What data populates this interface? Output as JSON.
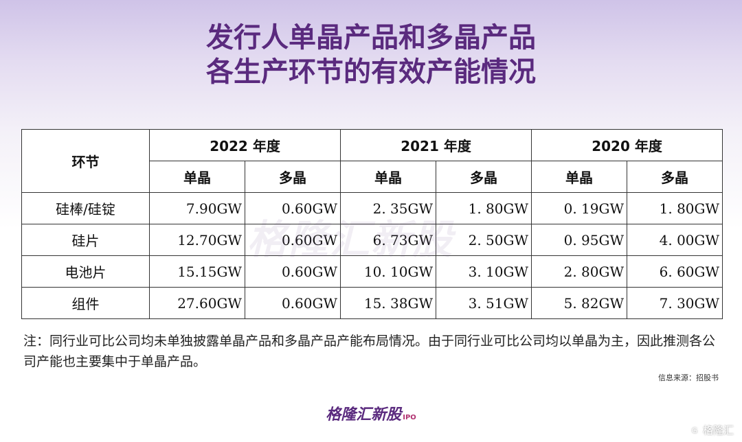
{
  "title": {
    "line1": "发行人单晶产品和多晶产品",
    "line2": "各生产环节的有效产能情况"
  },
  "table": {
    "stage_header": "环节",
    "years": [
      "2022 年度",
      "2021 年度",
      "2020 年度"
    ],
    "sub_headers": [
      "单晶",
      "多晶",
      "单晶",
      "多晶",
      "单晶",
      "多晶"
    ],
    "rows": [
      {
        "stage": "硅棒/硅锭",
        "values": [
          "7.90GW",
          "0.60GW",
          "2. 35GW",
          "1. 80GW",
          "0. 19GW",
          "1. 80GW"
        ]
      },
      {
        "stage": "硅片",
        "values": [
          "12.70GW",
          "0.60GW",
          "6. 73GW",
          "2. 50GW",
          "0. 95GW",
          "4. 00GW"
        ]
      },
      {
        "stage": "电池片",
        "values": [
          "15.15GW",
          "0.60GW",
          "10. 10GW",
          "3. 10GW",
          "2. 80GW",
          "6. 60GW"
        ]
      },
      {
        "stage": "组件",
        "values": [
          "27.60GW",
          "0.60GW",
          "15. 38GW",
          "3. 51GW",
          "5. 82GW",
          "7. 30GW"
        ]
      }
    ]
  },
  "note": "注：同行业可比公司均未单独披露单晶产品和多晶产品产能布局情况。由于同行业可比公司均以单晶为主，因此推测各公司产能也主要集中于单晶产品。",
  "source": "信息来源：招股书",
  "watermark": "格隆汇新股",
  "logo": {
    "text": "格隆汇新股",
    "suffix": "IPO"
  },
  "corner_brand": {
    "icon": "G",
    "text": "格隆汇"
  }
}
